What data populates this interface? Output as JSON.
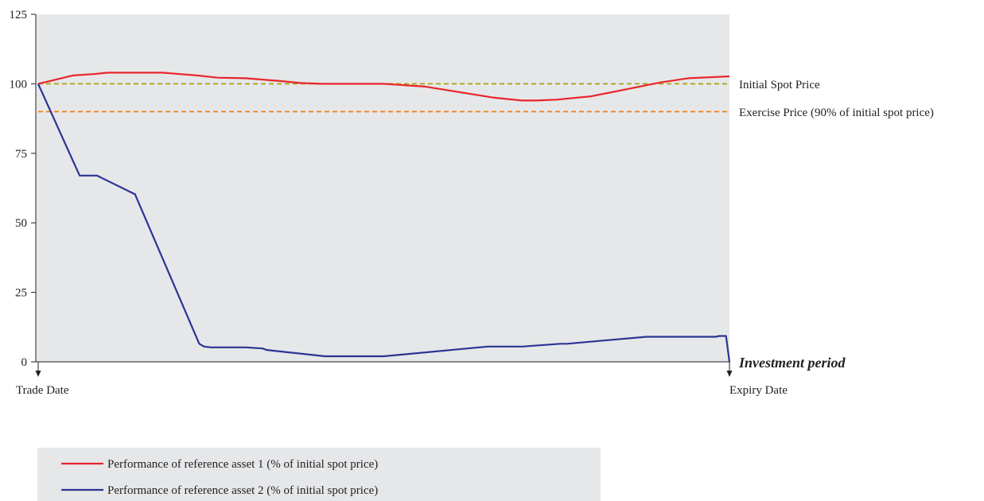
{
  "chart_data": {
    "type": "line",
    "xlabel": "Investment period",
    "ylabel": "",
    "ylim": [
      0,
      125
    ],
    "yticks": [
      0,
      25,
      50,
      75,
      100,
      125
    ],
    "xlim": [
      0,
      100
    ],
    "x_start_label": "Trade Date",
    "x_end_label": "Expiry Date",
    "grid": false,
    "background_color": "#e6e7e9",
    "legend_position": "bottom-left",
    "reference_lines": [
      {
        "name": "Initial Spot Price",
        "y": 100,
        "color": "#a8a410",
        "style": "dashed"
      },
      {
        "name": "Exercise Price (90% of initial spot price)",
        "y": 90,
        "color": "#f07f1a",
        "style": "dashed"
      }
    ],
    "series": [
      {
        "name": "Performance of reference asset 1 (% of initial spot price)",
        "color": "#e8262a",
        "x": [
          0,
          5,
          8,
          10,
          12,
          15,
          18,
          20,
          23,
          26,
          30,
          35,
          38,
          41,
          45,
          50,
          56,
          61,
          66,
          70,
          72,
          75,
          80,
          85,
          90,
          94,
          100
        ],
        "y": [
          100,
          103,
          103.5,
          104,
          104,
          104,
          104,
          103.6,
          103,
          102.2,
          102,
          101,
          100.3,
          100,
          100,
          100,
          99,
          97,
          95,
          94,
          94,
          94.3,
          95.5,
          98,
          100.5,
          102,
          102.7
        ]
      },
      {
        "name": "Performance of reference asset 2 (% of initial spot price)",
        "color": "#2b3593",
        "x": [
          0,
          6,
          8.5,
          14,
          23.3,
          24,
          25,
          30,
          32.5,
          33,
          34,
          41.5,
          50,
          65,
          70,
          75.5,
          76.5,
          81,
          88,
          98,
          98.5,
          99.5,
          100
        ],
        "y": [
          100,
          67,
          67,
          60.3,
          6.5,
          5.5,
          5.2,
          5.2,
          4.8,
          4.3,
          4,
          2,
          2,
          5.5,
          5.5,
          6.5,
          6.5,
          7.5,
          9,
          9,
          9.3,
          9.3,
          0
        ]
      }
    ]
  }
}
